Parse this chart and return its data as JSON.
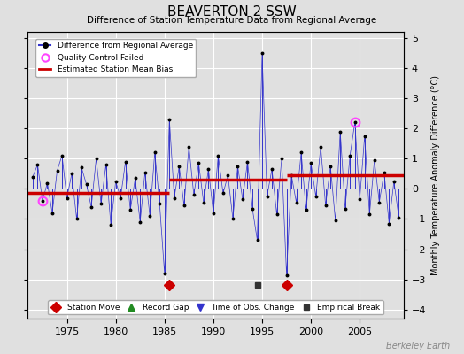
{
  "title": "BEAVERTON 2 SSW",
  "subtitle": "Difference of Station Temperature Data from Regional Average",
  "ylabel": "Monthly Temperature Anomaly Difference (°C)",
  "background_color": "#e0e0e0",
  "plot_bg_color": "#e0e0e0",
  "xlim": [
    1971.0,
    2009.5
  ],
  "ylim": [
    -4.3,
    5.2
  ],
  "yticks": [
    -4,
    -3,
    -2,
    -1,
    0,
    1,
    2,
    3,
    4,
    5
  ],
  "xticks": [
    1975,
    1980,
    1985,
    1990,
    1995,
    2000,
    2005
  ],
  "segment_means": [
    {
      "start": 1971.0,
      "end": 1985.5,
      "value": -0.15
    },
    {
      "start": 1985.5,
      "end": 1997.5,
      "value": 0.3
    },
    {
      "start": 1997.5,
      "end": 2009.5,
      "value": 0.45
    }
  ],
  "station_moves": [
    1985.5,
    1997.5
  ],
  "empirical_breaks": [
    1994.5
  ],
  "time_of_obs_changes": [],
  "record_gaps": [],
  "qc_failed_years": [
    1972.5,
    2004.5
  ],
  "data": [
    [
      1971.5,
      0.4
    ],
    [
      1972.0,
      0.8
    ],
    [
      1972.5,
      -0.4
    ],
    [
      1973.0,
      0.2
    ],
    [
      1973.5,
      -0.8
    ],
    [
      1974.0,
      0.6
    ],
    [
      1974.5,
      1.1
    ],
    [
      1975.0,
      -0.3
    ],
    [
      1975.5,
      0.5
    ],
    [
      1976.0,
      -1.0
    ],
    [
      1976.5,
      0.7
    ],
    [
      1977.0,
      0.15
    ],
    [
      1977.5,
      -0.6
    ],
    [
      1978.0,
      1.0
    ],
    [
      1978.5,
      -0.5
    ],
    [
      1979.0,
      0.8
    ],
    [
      1979.5,
      -1.2
    ],
    [
      1980.0,
      0.25
    ],
    [
      1980.5,
      -0.3
    ],
    [
      1981.0,
      0.9
    ],
    [
      1981.5,
      -0.7
    ],
    [
      1982.0,
      0.35
    ],
    [
      1982.5,
      -1.1
    ],
    [
      1983.0,
      0.55
    ],
    [
      1983.5,
      -0.9
    ],
    [
      1984.0,
      1.2
    ],
    [
      1984.5,
      -0.5
    ],
    [
      1985.0,
      -2.8
    ],
    [
      1985.5,
      2.3
    ],
    [
      1986.0,
      -0.3
    ],
    [
      1986.5,
      0.75
    ],
    [
      1987.0,
      -0.55
    ],
    [
      1987.5,
      1.4
    ],
    [
      1988.0,
      -0.2
    ],
    [
      1988.5,
      0.85
    ],
    [
      1989.0,
      -0.45
    ],
    [
      1989.5,
      0.65
    ],
    [
      1990.0,
      -0.8
    ],
    [
      1990.5,
      1.1
    ],
    [
      1991.0,
      -0.15
    ],
    [
      1991.5,
      0.45
    ],
    [
      1992.0,
      -1.0
    ],
    [
      1992.5,
      0.75
    ],
    [
      1993.0,
      -0.35
    ],
    [
      1993.5,
      0.9
    ],
    [
      1994.0,
      -0.65
    ],
    [
      1994.5,
      -1.7
    ],
    [
      1995.0,
      4.5
    ],
    [
      1995.5,
      -0.25
    ],
    [
      1996.0,
      0.65
    ],
    [
      1996.5,
      -0.85
    ],
    [
      1997.0,
      1.0
    ],
    [
      1997.5,
      -2.85
    ],
    [
      1998.0,
      0.45
    ],
    [
      1998.5,
      -0.45
    ],
    [
      1999.0,
      1.2
    ],
    [
      1999.5,
      -0.7
    ],
    [
      2000.0,
      0.85
    ],
    [
      2000.5,
      -0.25
    ],
    [
      2001.0,
      1.4
    ],
    [
      2001.5,
      -0.55
    ],
    [
      2002.0,
      0.75
    ],
    [
      2002.5,
      -1.05
    ],
    [
      2003.0,
      1.9
    ],
    [
      2003.5,
      -0.65
    ],
    [
      2004.0,
      1.1
    ],
    [
      2004.5,
      2.2
    ],
    [
      2005.0,
      -0.35
    ],
    [
      2005.5,
      1.75
    ],
    [
      2006.0,
      -0.85
    ],
    [
      2006.5,
      0.95
    ],
    [
      2007.0,
      -0.45
    ],
    [
      2007.5,
      0.55
    ],
    [
      2008.0,
      -1.15
    ],
    [
      2008.5,
      0.25
    ],
    [
      2009.0,
      -0.95
    ]
  ],
  "line_color": "#3333cc",
  "marker_color": "#000000",
  "mean_line_color": "#cc0000",
  "qc_color": "#ff44ff",
  "station_move_color": "#cc0000",
  "empirical_break_color": "#333333",
  "marker_bottom": -3.2
}
